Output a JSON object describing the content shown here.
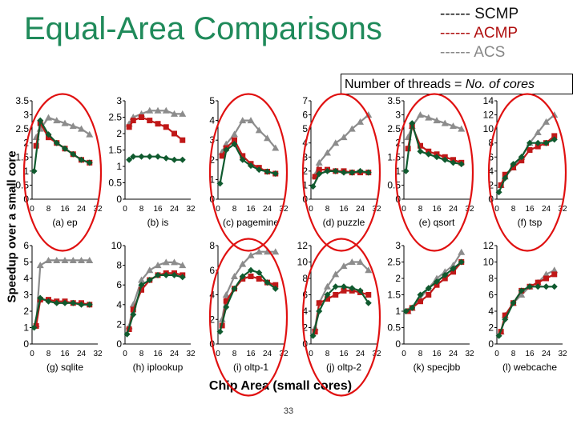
{
  "title": "Equal-Area Comparisons",
  "legend": {
    "scmp": "------ SCMP",
    "acmp": "------ ACMP",
    "acs": "------ ACS"
  },
  "threads_note": {
    "prefix": "Number of threads = ",
    "emphasis": "No. of cores"
  },
  "y_axis_label": "Speedup over a small core",
  "x_axis_label": "Chip Area (small cores)",
  "page_number": "33",
  "colors": {
    "scmp": "#0f5a2e",
    "acmp": "#c01818",
    "acs": "#8c8c8c",
    "circle": "#e01010",
    "title": "#1f8a5a"
  },
  "chart_data": [
    {
      "name": "(a) ep",
      "type": "line",
      "x_ticks": [
        "0",
        "8",
        "16",
        "24",
        "32"
      ],
      "ylim": [
        0,
        3.5
      ],
      "y_ticks": [
        "0",
        "0.5",
        "1",
        "1.5",
        "2",
        "2.5",
        "3",
        "3.5"
      ],
      "circled": true,
      "series": [
        {
          "name": "SCMP",
          "x": [
            1,
            4,
            8,
            12,
            16,
            20,
            24,
            28
          ],
          "y": [
            1,
            2.8,
            2.3,
            2.0,
            1.8,
            1.6,
            1.4,
            1.3
          ]
        },
        {
          "name": "ACMP",
          "x": [
            2,
            4,
            8,
            12,
            16,
            20,
            24,
            28
          ],
          "y": [
            1.9,
            2.7,
            2.2,
            2.0,
            1.8,
            1.6,
            1.4,
            1.3
          ]
        },
        {
          "name": "ACS",
          "x": [
            2,
            4,
            8,
            12,
            16,
            20,
            24,
            28
          ],
          "y": [
            2.2,
            2.5,
            2.9,
            2.8,
            2.7,
            2.6,
            2.5,
            2.3
          ]
        }
      ]
    },
    {
      "name": "(b) is",
      "type": "line",
      "x_ticks": [
        "0",
        "8",
        "16",
        "24",
        "32"
      ],
      "ylim": [
        0,
        3
      ],
      "y_ticks": [
        "0",
        "0.5",
        "1",
        "1.5",
        "2",
        "2.5",
        "3"
      ],
      "circled": false,
      "series": [
        {
          "name": "SCMP",
          "x": [
            2,
            4,
            8,
            12,
            16,
            20,
            24,
            28
          ],
          "y": [
            1.2,
            1.3,
            1.3,
            1.3,
            1.3,
            1.25,
            1.2,
            1.2
          ]
        },
        {
          "name": "ACMP",
          "x": [
            2,
            4,
            8,
            12,
            16,
            20,
            24,
            28
          ],
          "y": [
            2.2,
            2.4,
            2.5,
            2.4,
            2.3,
            2.2,
            2.0,
            1.8
          ]
        },
        {
          "name": "ACS",
          "x": [
            2,
            4,
            8,
            12,
            16,
            20,
            24,
            28
          ],
          "y": [
            2.3,
            2.5,
            2.6,
            2.7,
            2.7,
            2.7,
            2.6,
            2.6
          ]
        }
      ]
    },
    {
      "name": "(c) pagemine",
      "type": "line",
      "x_ticks": [
        "0",
        "8",
        "16",
        "24",
        "32"
      ],
      "ylim": [
        0,
        5
      ],
      "y_ticks": [
        "0",
        "1",
        "2",
        "3",
        "4",
        "5"
      ],
      "circled": true,
      "series": [
        {
          "name": "SCMP",
          "x": [
            1,
            4,
            8,
            12,
            16,
            20,
            24,
            28
          ],
          "y": [
            0.8,
            2.5,
            2.8,
            2.0,
            1.7,
            1.5,
            1.4,
            1.3
          ]
        },
        {
          "name": "ACMP",
          "x": [
            2,
            4,
            8,
            12,
            16,
            20,
            24,
            28
          ],
          "y": [
            2.2,
            2.6,
            3.0,
            2.2,
            1.8,
            1.6,
            1.4,
            1.3
          ]
        },
        {
          "name": "ACS",
          "x": [
            2,
            4,
            8,
            12,
            16,
            20,
            24,
            28
          ],
          "y": [
            2.4,
            2.8,
            3.3,
            4.0,
            4.0,
            3.5,
            3.1,
            2.6
          ]
        }
      ]
    },
    {
      "name": "(d) puzzle",
      "type": "line",
      "x_ticks": [
        "0",
        "8",
        "16",
        "24",
        "32"
      ],
      "ylim": [
        0,
        7
      ],
      "y_ticks": [
        "0",
        "1",
        "2",
        "3",
        "4",
        "5",
        "6",
        "7"
      ],
      "circled": true,
      "series": [
        {
          "name": "SCMP",
          "x": [
            1,
            4,
            8,
            12,
            16,
            20,
            24,
            28
          ],
          "y": [
            0.9,
            1.8,
            2.0,
            2.0,
            1.9,
            1.9,
            2.0,
            1.9
          ]
        },
        {
          "name": "ACMP",
          "x": [
            2,
            4,
            8,
            12,
            16,
            20,
            24,
            28
          ],
          "y": [
            1.6,
            2.1,
            2.1,
            2.0,
            2.0,
            1.9,
            1.9,
            1.9
          ]
        },
        {
          "name": "ACS",
          "x": [
            2,
            4,
            8,
            12,
            16,
            20,
            24,
            28
          ],
          "y": [
            1.7,
            2.6,
            3.3,
            4.0,
            4.4,
            5.0,
            5.5,
            6.0
          ]
        }
      ]
    },
    {
      "name": "(e) qsort",
      "type": "line",
      "x_ticks": [
        "0",
        "8",
        "16",
        "24",
        "32"
      ],
      "ylim": [
        0,
        3.5
      ],
      "y_ticks": [
        "0",
        "0.5",
        "1",
        "1.5",
        "2",
        "2.5",
        "3",
        "3.5"
      ],
      "circled": true,
      "series": [
        {
          "name": "SCMP",
          "x": [
            1,
            4,
            8,
            12,
            16,
            20,
            24,
            28
          ],
          "y": [
            1,
            2.7,
            1.7,
            1.6,
            1.5,
            1.4,
            1.3,
            1.25
          ]
        },
        {
          "name": "ACMP",
          "x": [
            2,
            4,
            8,
            12,
            16,
            20,
            24,
            28
          ],
          "y": [
            1.8,
            2.6,
            1.9,
            1.7,
            1.6,
            1.5,
            1.4,
            1.3
          ]
        },
        {
          "name": "ACS",
          "x": [
            2,
            4,
            8,
            12,
            16,
            20,
            24,
            28
          ],
          "y": [
            2.2,
            2.6,
            3.0,
            2.9,
            2.8,
            2.7,
            2.6,
            2.5
          ]
        }
      ]
    },
    {
      "name": "(f) tsp",
      "type": "line",
      "x_ticks": [
        "0",
        "8",
        "16",
        "24",
        "32"
      ],
      "ylim": [
        0,
        14
      ],
      "y_ticks": [
        "0",
        "2",
        "4",
        "6",
        "8",
        "10",
        "12",
        "14"
      ],
      "circled": true,
      "series": [
        {
          "name": "SCMP",
          "x": [
            1,
            4,
            8,
            12,
            16,
            20,
            24,
            28
          ],
          "y": [
            1,
            3,
            5,
            6,
            8,
            8,
            8,
            8.5
          ]
        },
        {
          "name": "ACMP",
          "x": [
            2,
            4,
            8,
            12,
            16,
            20,
            24,
            28
          ],
          "y": [
            2,
            3.5,
            4.5,
            5.5,
            7,
            7.5,
            8,
            9
          ]
        },
        {
          "name": "ACS",
          "x": [
            2,
            4,
            8,
            12,
            16,
            20,
            24,
            28
          ],
          "y": [
            2,
            3.2,
            4.5,
            6,
            8,
            9.5,
            11,
            12
          ]
        }
      ]
    },
    {
      "name": "(g) sqlite",
      "type": "line",
      "x_ticks": [
        "0",
        "8",
        "16",
        "24",
        "32"
      ],
      "ylim": [
        0,
        6
      ],
      "y_ticks": [
        "0",
        "1",
        "2",
        "3",
        "4",
        "5",
        "6"
      ],
      "circled": false,
      "series": [
        {
          "name": "SCMP",
          "x": [
            1,
            4,
            8,
            12,
            16,
            20,
            24,
            28
          ],
          "y": [
            1,
            2.8,
            2.6,
            2.5,
            2.5,
            2.5,
            2.4,
            2.4
          ]
        },
        {
          "name": "ACMP",
          "x": [
            2,
            4,
            8,
            12,
            16,
            20,
            24,
            28
          ],
          "y": [
            1.1,
            2.7,
            2.7,
            2.6,
            2.6,
            2.5,
            2.5,
            2.4
          ]
        },
        {
          "name": "ACS",
          "x": [
            2,
            4,
            8,
            12,
            16,
            20,
            24,
            28
          ],
          "y": [
            1.2,
            4.8,
            5.1,
            5.1,
            5.1,
            5.1,
            5.1,
            5.1
          ]
        }
      ]
    },
    {
      "name": "(h) iplookup",
      "type": "line",
      "x_ticks": [
        "0",
        "8",
        "16",
        "24",
        "32"
      ],
      "ylim": [
        0,
        10
      ],
      "y_ticks": [
        "0",
        "2",
        "4",
        "6",
        "8",
        "10"
      ],
      "circled": false,
      "series": [
        {
          "name": "SCMP",
          "x": [
            1,
            4,
            8,
            12,
            16,
            20,
            24,
            28
          ],
          "y": [
            1,
            3,
            6,
            6.5,
            7,
            7,
            7,
            6.8
          ]
        },
        {
          "name": "ACMP",
          "x": [
            2,
            4,
            8,
            12,
            16,
            20,
            24,
            28
          ],
          "y": [
            1.5,
            3.5,
            5.5,
            6.5,
            7,
            7.2,
            7.2,
            7
          ]
        },
        {
          "name": "ACS",
          "x": [
            2,
            4,
            8,
            12,
            16,
            20,
            24,
            28
          ],
          "y": [
            1.8,
            4,
            6.5,
            7.5,
            8,
            8.3,
            8.3,
            8
          ]
        }
      ]
    },
    {
      "name": "(i) oltp-1",
      "type": "line",
      "x_ticks": [
        "0",
        "8",
        "16",
        "24",
        "32"
      ],
      "ylim": [
        0,
        8
      ],
      "y_ticks": [
        "0",
        "2",
        "4",
        "6",
        "8"
      ],
      "circled": true,
      "series": [
        {
          "name": "SCMP",
          "x": [
            1,
            4,
            8,
            12,
            16,
            20,
            24,
            28
          ],
          "y": [
            1,
            3,
            4.5,
            5.5,
            6.0,
            5.8,
            5.0,
            4.5
          ]
        },
        {
          "name": "ACMP",
          "x": [
            2,
            4,
            8,
            12,
            16,
            20,
            24,
            28
          ],
          "y": [
            1.5,
            3.5,
            4.5,
            5.3,
            5.5,
            5.3,
            5.0,
            4.8
          ]
        },
        {
          "name": "ACS",
          "x": [
            2,
            4,
            8,
            12,
            16,
            20,
            24,
            28
          ],
          "y": [
            2,
            4,
            5.5,
            6.5,
            7.2,
            7.5,
            7.5,
            7.5
          ]
        }
      ]
    },
    {
      "name": "(j) oltp-2",
      "type": "line",
      "x_ticks": [
        "0",
        "8",
        "16",
        "24",
        "32"
      ],
      "ylim": [
        0,
        12
      ],
      "y_ticks": [
        "0",
        "2",
        "4",
        "6",
        "8",
        "10",
        "12"
      ],
      "circled": true,
      "series": [
        {
          "name": "SCMP",
          "x": [
            1,
            4,
            8,
            12,
            16,
            20,
            24,
            28
          ],
          "y": [
            1,
            4,
            6,
            7,
            7,
            6.8,
            6.5,
            5
          ]
        },
        {
          "name": "ACMP",
          "x": [
            2,
            4,
            8,
            12,
            16,
            20,
            24,
            28
          ],
          "y": [
            1.5,
            5,
            5.5,
            6,
            6.5,
            6.5,
            6.3,
            6
          ]
        },
        {
          "name": "ACS",
          "x": [
            2,
            4,
            8,
            12,
            16,
            20,
            24,
            28
          ],
          "y": [
            2,
            5,
            7,
            8.5,
            9.5,
            10,
            10,
            9
          ]
        }
      ]
    },
    {
      "name": "(k) specjbb",
      "type": "line",
      "x_ticks": [
        "0",
        "8",
        "16",
        "24",
        "32"
      ],
      "ylim": [
        0,
        3
      ],
      "y_ticks": [
        "0",
        "0.5",
        "1",
        "1.5",
        "2",
        "2.5",
        "3"
      ],
      "circled": false,
      "series": [
        {
          "name": "SCMP",
          "x": [
            1,
            4,
            8,
            12,
            16,
            20,
            24,
            28
          ],
          "y": [
            1,
            1.1,
            1.5,
            1.7,
            1.9,
            2.1,
            2.3,
            2.5
          ]
        },
        {
          "name": "ACMP",
          "x": [
            2,
            4,
            8,
            12,
            16,
            20,
            24,
            28
          ],
          "y": [
            1,
            1.1,
            1.3,
            1.5,
            1.8,
            2.0,
            2.2,
            2.5
          ]
        },
        {
          "name": "ACS",
          "x": [
            2,
            4,
            8,
            12,
            16,
            20,
            24,
            28
          ],
          "y": [
            1,
            1.1,
            1.4,
            1.7,
            2.0,
            2.2,
            2.4,
            2.8
          ]
        }
      ]
    },
    {
      "name": "(l) webcache",
      "type": "line",
      "x_ticks": [
        "0",
        "8",
        "16",
        "24",
        "32"
      ],
      "ylim": [
        0,
        12
      ],
      "y_ticks": [
        "0",
        "2",
        "4",
        "6",
        "8",
        "10",
        "12"
      ],
      "circled": false,
      "series": [
        {
          "name": "SCMP",
          "x": [
            1,
            4,
            8,
            12,
            16,
            20,
            24,
            28
          ],
          "y": [
            1,
            3,
            5,
            6.5,
            7,
            7,
            7,
            7
          ]
        },
        {
          "name": "ACMP",
          "x": [
            2,
            4,
            8,
            12,
            16,
            20,
            24,
            28
          ],
          "y": [
            1.5,
            3.5,
            5,
            6.5,
            7,
            7.5,
            8,
            8.5
          ]
        },
        {
          "name": "ACS",
          "x": [
            2,
            4,
            8,
            12,
            16,
            20,
            24,
            28
          ],
          "y": [
            1.5,
            3.5,
            5,
            6,
            7,
            7.5,
            8.5,
            9
          ]
        }
      ]
    }
  ]
}
